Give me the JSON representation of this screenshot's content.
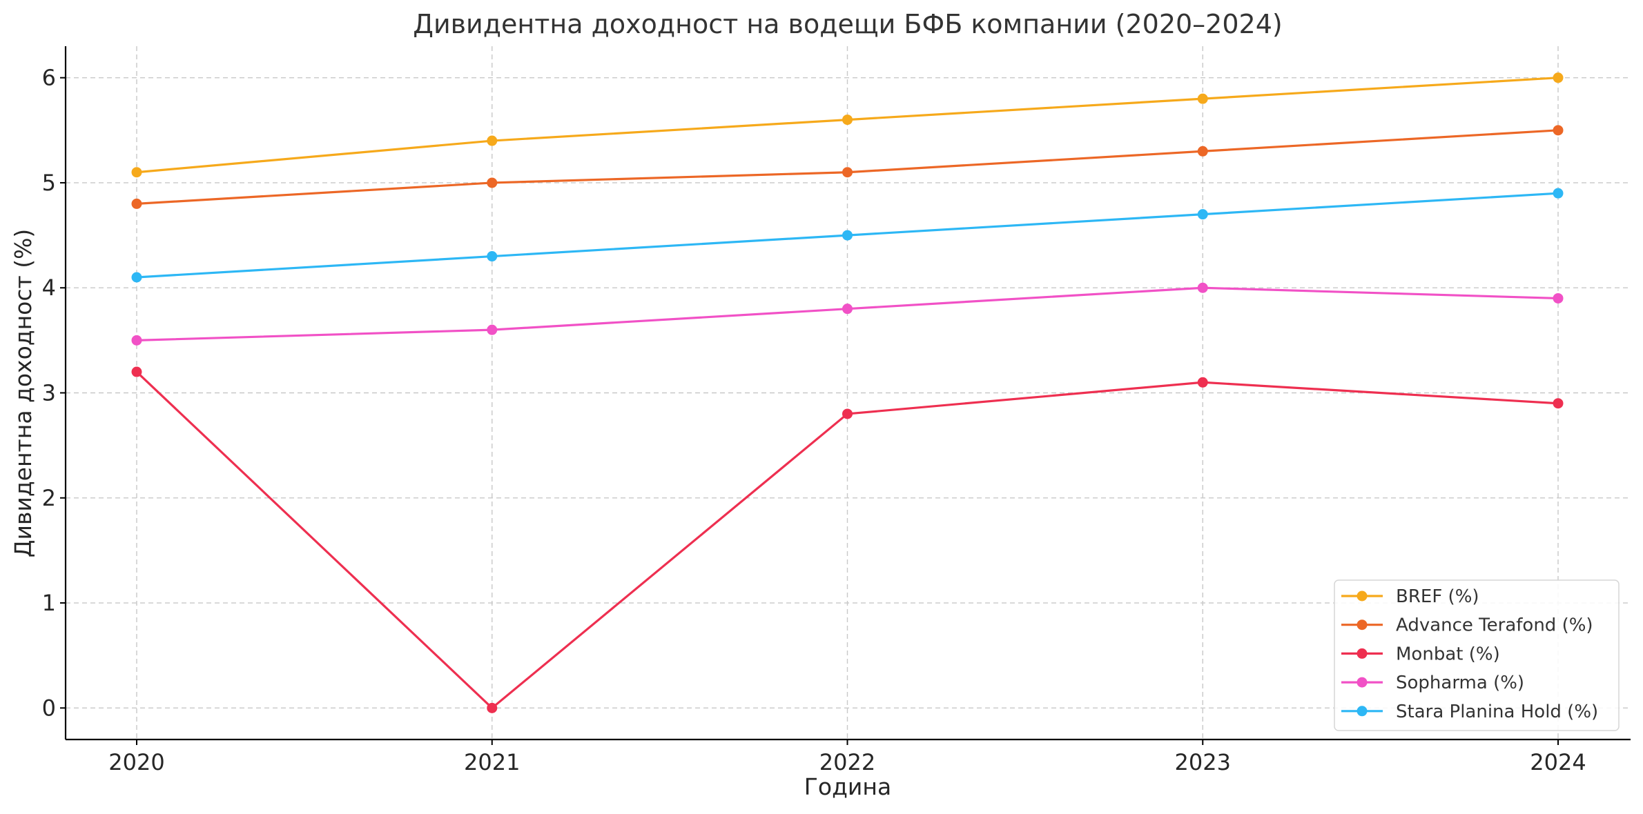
{
  "chart_data": {
    "type": "line",
    "title": "Дивидентна доходност на водещи БФБ компании (2020–2024)",
    "xlabel": "Година",
    "ylabel": "Дивидентна доходност (%)",
    "categories": [
      "2020",
      "2021",
      "2022",
      "2023",
      "2024"
    ],
    "yticks": [
      0,
      1,
      2,
      3,
      4,
      5,
      6
    ],
    "ylim": [
      -0.3,
      6.3
    ],
    "grid": true,
    "legend_position": "lower-right",
    "series": [
      {
        "name": "BREF (%)",
        "color": "#F6A91B",
        "values": [
          5.1,
          5.4,
          5.6,
          5.8,
          6.0
        ]
      },
      {
        "name": "Advance Terafond (%)",
        "color": "#EC6726",
        "values": [
          4.8,
          5.0,
          5.1,
          5.3,
          5.5
        ]
      },
      {
        "name": "Monbat (%)",
        "color": "#EE2F50",
        "values": [
          3.2,
          0.0,
          2.8,
          3.1,
          2.9
        ]
      },
      {
        "name": "Sopharma (%)",
        "color": "#F151C6",
        "values": [
          3.5,
          3.6,
          3.8,
          4.0,
          3.9
        ]
      },
      {
        "name": "Stara Planina Hold (%)",
        "color": "#2DB7F5",
        "values": [
          4.1,
          4.3,
          4.5,
          4.7,
          4.9
        ]
      }
    ]
  }
}
